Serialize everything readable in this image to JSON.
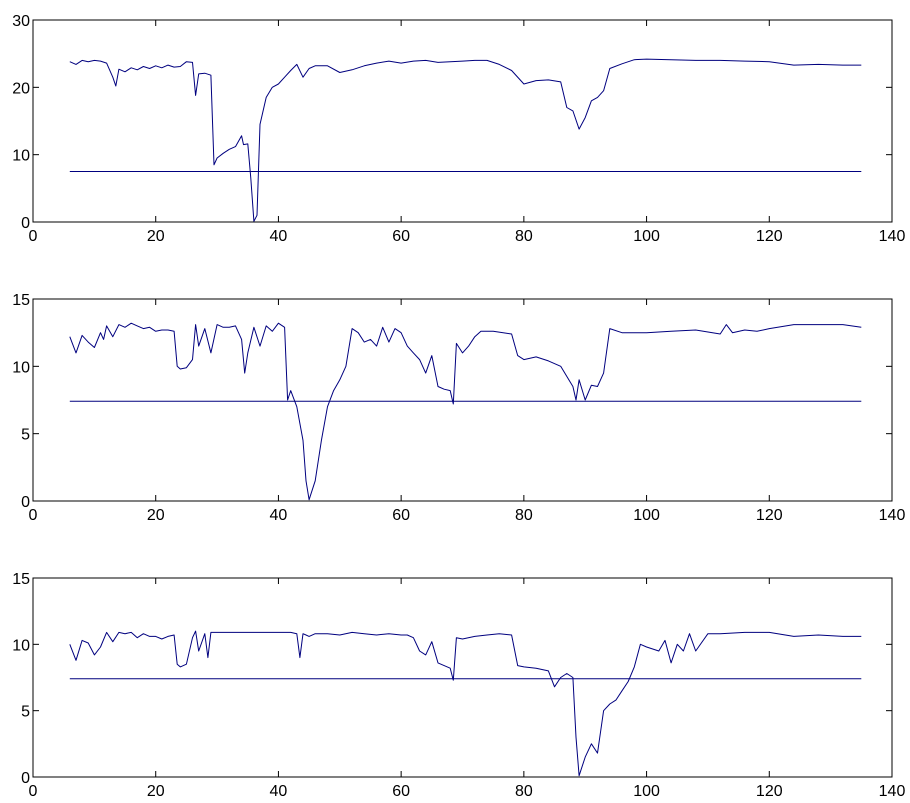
{
  "chart_data": [
    {
      "type": "line",
      "xlim": [
        0,
        140
      ],
      "ylim": [
        0,
        30
      ],
      "xticks": [
        "0",
        "20",
        "40",
        "60",
        "80",
        "100",
        "120",
        "140"
      ],
      "yticks": [
        "0",
        "10",
        "20",
        "30"
      ],
      "grid": false,
      "colors": {
        "signal": "#00007f",
        "threshold": "#00007f"
      },
      "series": [
        {
          "x": [
            6,
            7,
            8,
            9,
            10,
            11,
            12,
            13,
            13.5,
            14,
            15,
            16,
            17,
            18,
            19,
            20,
            21,
            22,
            23,
            24,
            25,
            26,
            26.5,
            27,
            28,
            29,
            29.5,
            30,
            31,
            32,
            33,
            34,
            34.3,
            35,
            35.5,
            36,
            36.5,
            37,
            38,
            39,
            40,
            41,
            42,
            43,
            44,
            45,
            46,
            48,
            50,
            52,
            54,
            56,
            58,
            60,
            62,
            64,
            66,
            68,
            70,
            72,
            74,
            76,
            78,
            80,
            82,
            84,
            86,
            87,
            88,
            89,
            90,
            91,
            92,
            93,
            94,
            96,
            98,
            100,
            104,
            108,
            112,
            116,
            120,
            124,
            128,
            132,
            135
          ],
          "y": [
            23.8,
            23.4,
            24.0,
            23.8,
            24.0,
            23.9,
            23.6,
            21.5,
            20.2,
            22.7,
            22.3,
            22.9,
            22.6,
            23.1,
            22.8,
            23.2,
            22.9,
            23.3,
            23.0,
            23.1,
            23.8,
            23.7,
            18.8,
            22.0,
            22.1,
            21.8,
            8.5,
            9.5,
            10.2,
            10.8,
            11.2,
            12.8,
            11.5,
            11.6,
            6.5,
            0.1,
            1.0,
            14.5,
            18.5,
            20.0,
            20.5,
            21.5,
            22.5,
            23.4,
            21.5,
            22.8,
            23.2,
            23.2,
            22.2,
            22.6,
            23.2,
            23.6,
            23.9,
            23.6,
            23.9,
            24.0,
            23.7,
            23.8,
            23.9,
            24.0,
            24.0,
            23.4,
            22.5,
            20.5,
            21.0,
            21.1,
            20.8,
            17.0,
            16.5,
            13.8,
            15.5,
            18.0,
            18.5,
            19.5,
            22.8,
            23.5,
            24.1,
            24.2,
            24.1,
            24.0,
            24.0,
            23.9,
            23.8,
            23.3,
            23.4,
            23.3,
            23.3
          ]
        },
        {
          "x": [
            6,
            135
          ],
          "y": [
            7.5,
            7.5
          ]
        }
      ]
    },
    {
      "type": "line",
      "xlim": [
        0,
        140
      ],
      "ylim": [
        0,
        15
      ],
      "xticks": [
        "0",
        "20",
        "40",
        "60",
        "80",
        "100",
        "120",
        "140"
      ],
      "yticks": [
        "0",
        "5",
        "10",
        "15"
      ],
      "grid": false,
      "colors": {
        "signal": "#00007f",
        "threshold": "#00007f"
      },
      "series": [
        {
          "x": [
            6,
            7,
            8,
            9,
            10,
            11,
            11.5,
            12,
            13,
            14,
            15,
            16,
            17,
            18,
            19,
            20,
            21,
            22,
            23,
            23.5,
            24,
            25,
            26,
            26.5,
            27,
            28,
            29,
            30,
            31,
            32,
            33,
            34,
            34.5,
            35,
            36,
            37,
            38,
            39,
            40,
            41,
            41.5,
            42,
            43,
            44,
            44.5,
            45,
            46,
            47,
            48,
            49,
            50,
            51,
            52,
            53,
            54,
            55,
            56,
            57,
            58,
            59,
            60,
            61,
            62,
            63,
            64,
            65,
            66,
            67,
            68,
            68.5,
            69,
            70,
            71,
            72,
            73,
            75,
            78,
            79,
            80,
            82,
            84,
            86,
            88,
            88.5,
            89,
            90,
            91,
            92,
            93,
            94,
            96,
            100,
            104,
            108,
            112,
            113,
            114,
            116,
            118,
            120,
            124,
            128,
            132,
            135
          ],
          "y": [
            12.2,
            11.0,
            12.3,
            11.8,
            11.4,
            12.5,
            12.0,
            13.0,
            12.2,
            13.1,
            12.9,
            13.2,
            13.0,
            12.8,
            12.9,
            12.6,
            12.7,
            12.7,
            12.6,
            10.0,
            9.8,
            9.9,
            10.5,
            13.1,
            11.5,
            12.8,
            11.0,
            13.1,
            12.9,
            12.9,
            13.0,
            12.0,
            9.5,
            11.0,
            12.9,
            11.5,
            13.0,
            12.6,
            13.2,
            12.9,
            7.5,
            8.2,
            7.0,
            4.5,
            1.5,
            0.1,
            1.5,
            4.5,
            7.0,
            8.2,
            9.0,
            10.0,
            12.8,
            12.5,
            11.8,
            12.0,
            11.5,
            12.9,
            11.8,
            12.8,
            12.5,
            11.5,
            11.0,
            10.5,
            9.5,
            10.8,
            8.5,
            8.3,
            8.2,
            7.2,
            11.7,
            11.0,
            11.5,
            12.2,
            12.6,
            12.6,
            12.4,
            10.8,
            10.5,
            10.7,
            10.4,
            10.0,
            8.5,
            7.5,
            9.0,
            7.5,
            8.6,
            8.5,
            9.5,
            12.8,
            12.5,
            12.5,
            12.6,
            12.7,
            12.4,
            13.1,
            12.5,
            12.7,
            12.6,
            12.8,
            13.1,
            13.1,
            13.1,
            12.9
          ]
        },
        {
          "x": [
            6,
            135
          ],
          "y": [
            7.4,
            7.4
          ]
        }
      ]
    },
    {
      "type": "line",
      "xlim": [
        0,
        140
      ],
      "ylim": [
        0,
        15
      ],
      "xticks": [
        "0",
        "20",
        "40",
        "60",
        "80",
        "100",
        "120",
        "140"
      ],
      "yticks": [
        "0",
        "5",
        "10",
        "15"
      ],
      "grid": false,
      "colors": {
        "signal": "#00007f",
        "threshold": "#00007f"
      },
      "series": [
        {
          "x": [
            6,
            7,
            8,
            9,
            10,
            11,
            12,
            13,
            14,
            15,
            16,
            17,
            18,
            19,
            20,
            21,
            22,
            23,
            23.5,
            24,
            25,
            26,
            26.5,
            27,
            28,
            28.5,
            29,
            30,
            32,
            34,
            36,
            38,
            40,
            42,
            43,
            43.5,
            44,
            44.5,
            45,
            46,
            48,
            50,
            52,
            54,
            56,
            58,
            60,
            61,
            62,
            63,
            64,
            65,
            66,
            67,
            68,
            68.5,
            69,
            70,
            72,
            74,
            76,
            78,
            79,
            80,
            82,
            84,
            85,
            86,
            87,
            88,
            88.5,
            89,
            90,
            91,
            92,
            93,
            94,
            95,
            96,
            97,
            98,
            99,
            100,
            102,
            103,
            104,
            105,
            106,
            107,
            108,
            110,
            112,
            116,
            120,
            124,
            128,
            132,
            135
          ],
          "y": [
            10.0,
            8.8,
            10.3,
            10.1,
            9.2,
            9.8,
            10.9,
            10.2,
            10.9,
            10.8,
            10.9,
            10.5,
            10.8,
            10.6,
            10.6,
            10.4,
            10.6,
            10.7,
            8.5,
            8.3,
            8.5,
            10.5,
            11.0,
            9.5,
            10.8,
            9.0,
            10.9,
            10.9,
            10.9,
            10.9,
            10.9,
            10.9,
            10.9,
            10.9,
            10.8,
            9.0,
            10.8,
            10.7,
            10.6,
            10.8,
            10.8,
            10.7,
            10.9,
            10.8,
            10.7,
            10.8,
            10.7,
            10.7,
            10.5,
            9.5,
            9.2,
            10.2,
            8.6,
            8.4,
            8.2,
            7.3,
            10.5,
            10.4,
            10.6,
            10.7,
            10.8,
            10.7,
            8.4,
            8.3,
            8.2,
            8.0,
            6.8,
            7.5,
            7.8,
            7.5,
            3.0,
            0.1,
            1.5,
            2.5,
            1.8,
            5.0,
            5.5,
            5.8,
            6.5,
            7.2,
            8.3,
            10.0,
            9.8,
            9.5,
            10.3,
            8.6,
            10.0,
            9.5,
            10.8,
            9.5,
            10.8,
            10.8,
            10.9,
            10.9,
            10.6,
            10.7,
            10.6,
            10.6
          ]
        },
        {
          "x": [
            6,
            135
          ],
          "y": [
            7.4,
            7.4
          ]
        }
      ]
    }
  ]
}
